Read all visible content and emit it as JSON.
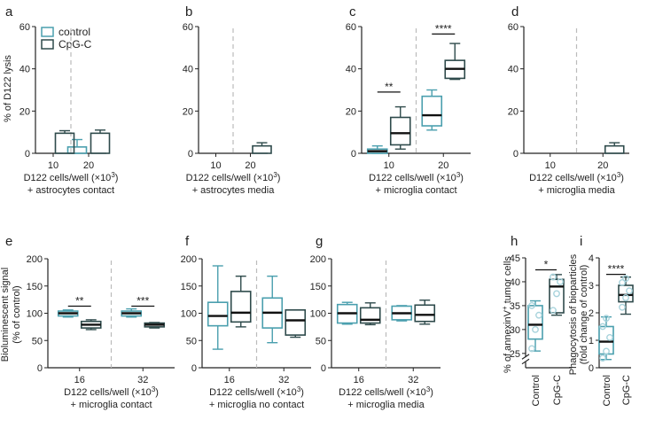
{
  "colors": {
    "control": "#4a9fae",
    "cpg": "#2e4a4b",
    "dots": "#a8d3dc",
    "divider": "#bbbbbb",
    "axis": "#222222"
  },
  "legend": {
    "control": "control",
    "cpg": "CpG-C"
  },
  "chart_data": [
    {
      "id": "a",
      "type": "bar",
      "panel_label": "a",
      "ylabel": "% of D122 lysis",
      "ylim": [
        0,
        60
      ],
      "yticks": [
        "0",
        "20",
        "40",
        "60"
      ],
      "categories": [
        "10",
        "20"
      ],
      "xlabel_line1": "D122 cells/well (×10",
      "xlabel_sup": "3",
      "xlabel_line1_end": ")",
      "xlabel_line2": "+ astrocytes contact",
      "series": [
        {
          "name": "control",
          "values": [
            0,
            3
          ]
        },
        {
          "name": "CpG-C",
          "values": [
            9.5,
            9.5
          ]
        }
      ],
      "errors": [
        [
          0,
          1.2
        ],
        [
          3.5,
          1.5
        ]
      ],
      "stars": []
    },
    {
      "id": "b",
      "type": "bar",
      "panel_label": "b",
      "ylabel": "",
      "ylim": [
        0,
        60
      ],
      "yticks": [
        "0",
        "20",
        "40",
        "60"
      ],
      "categories": [
        "10",
        "20"
      ],
      "xlabel_line1": "D122 cells/well (×10",
      "xlabel_sup": "3",
      "xlabel_line1_end": ")",
      "xlabel_line2": "+ astrocytes media",
      "series": [
        {
          "name": "control",
          "values": [
            0,
            0
          ]
        },
        {
          "name": "CpG-C",
          "values": [
            0,
            3.5
          ]
        }
      ],
      "errors": [
        [
          0,
          0
        ],
        [
          0,
          1.5
        ]
      ],
      "stars": []
    },
    {
      "id": "c",
      "type": "box",
      "panel_label": "c",
      "ylabel": "",
      "ylim": [
        0,
        60
      ],
      "yticks": [
        "0",
        "20",
        "40",
        "60"
      ],
      "categories": [
        "10",
        "20"
      ],
      "xlabel_line1": "D122 cells/well (×10",
      "xlabel_sup": "3",
      "xlabel_line1_end": ")",
      "xlabel_line2": "+ microglia contact",
      "boxes": [
        {
          "group": 0,
          "series": "control",
          "min": 0,
          "q1": 0,
          "median": 1,
          "q3": 2,
          "max": 3.5
        },
        {
          "group": 0,
          "series": "CpG-C",
          "min": 2,
          "q1": 4,
          "median": 9.5,
          "q3": 17,
          "max": 22
        },
        {
          "group": 1,
          "series": "control",
          "min": 11,
          "q1": 13,
          "median": 18,
          "q3": 27,
          "max": 30
        },
        {
          "group": 1,
          "series": "CpG-C",
          "min": 35,
          "q1": 35.5,
          "median": 40,
          "q3": 44,
          "max": 52
        }
      ],
      "stars": [
        {
          "group": 0,
          "text": "**",
          "y": 29
        },
        {
          "group": 1,
          "text": "****",
          "y": 56.5
        }
      ]
    },
    {
      "id": "d",
      "type": "bar",
      "panel_label": "d",
      "ylabel": "",
      "ylim": [
        0,
        60
      ],
      "yticks": [
        "0",
        "20",
        "40",
        "60"
      ],
      "categories": [
        "10",
        "20"
      ],
      "xlabel_line1": "D122 cells/well (×10",
      "xlabel_sup": "3",
      "xlabel_line1_end": ")",
      "xlabel_line2": "+ microglia media",
      "series": [
        {
          "name": "control",
          "values": [
            0,
            0
          ]
        },
        {
          "name": "CpG-C",
          "values": [
            0,
            3.5
          ]
        }
      ],
      "errors": [
        [
          0,
          0
        ],
        [
          0,
          1.5
        ]
      ],
      "stars": []
    },
    {
      "id": "e",
      "type": "box",
      "panel_label": "e",
      "ylabel": "Bioluminescent signal",
      "ylabel2": "(% of control)",
      "ylim": [
        0,
        200
      ],
      "yticks": [
        "0",
        "50",
        "100",
        "150",
        "200"
      ],
      "categories": [
        "16",
        "32"
      ],
      "xlabel_line1": "D122 cells/well (×10",
      "xlabel_sup": "3",
      "xlabel_line1_end": ")",
      "xlabel_line2": "+ microglia contact",
      "boxes": [
        {
          "group": 0,
          "series": "control",
          "min": 93,
          "q1": 95,
          "median": 100,
          "q3": 104,
          "max": 106
        },
        {
          "group": 0,
          "series": "CpG-C",
          "min": 70,
          "q1": 73,
          "median": 79,
          "q3": 85,
          "max": 88
        },
        {
          "group": 1,
          "series": "control",
          "min": 93,
          "q1": 95,
          "median": 100,
          "q3": 104,
          "max": 108
        },
        {
          "group": 1,
          "series": "CpG-C",
          "min": 73,
          "q1": 75,
          "median": 79,
          "q3": 82,
          "max": 83
        }
      ],
      "stars": [
        {
          "group": 0,
          "text": "**",
          "y": 113
        },
        {
          "group": 1,
          "text": "***",
          "y": 113
        }
      ]
    },
    {
      "id": "f",
      "type": "box",
      "panel_label": "f",
      "ylabel": "",
      "ylim": [
        0,
        200
      ],
      "yticks": [
        "0",
        "50",
        "100",
        "150",
        "200"
      ],
      "categories": [
        "16",
        "32"
      ],
      "xlabel_line1": "D122 cells/well (×10",
      "xlabel_sup": "3",
      "xlabel_line1_end": ")",
      "xlabel_line2": "+ microglia no contact",
      "boxes": [
        {
          "group": 0,
          "series": "control",
          "min": 34,
          "q1": 77,
          "median": 95,
          "q3": 120,
          "max": 187
        },
        {
          "group": 0,
          "series": "CpG-C",
          "min": 75,
          "q1": 84,
          "median": 101,
          "q3": 140,
          "max": 168
        },
        {
          "group": 1,
          "series": "control",
          "min": 46,
          "q1": 73,
          "median": 101,
          "q3": 128,
          "max": 168
        },
        {
          "group": 1,
          "series": "CpG-C",
          "min": 56,
          "q1": 60,
          "median": 87,
          "q3": 106,
          "max": 106
        }
      ],
      "stars": []
    },
    {
      "id": "g",
      "type": "box",
      "panel_label": "g",
      "ylabel": "",
      "ylim": [
        0,
        200
      ],
      "yticks": [
        "0",
        "50",
        "100",
        "150",
        "200"
      ],
      "categories": [
        "16",
        "32"
      ],
      "xlabel_line1": "D122 cells/well (×10",
      "xlabel_sup": "3",
      "xlabel_line1_end": ")",
      "xlabel_line2": "+ microglia media",
      "boxes": [
        {
          "group": 0,
          "series": "control",
          "min": 80,
          "q1": 82,
          "median": 100,
          "q3": 116,
          "max": 120
        },
        {
          "group": 0,
          "series": "CpG-C",
          "min": 79,
          "q1": 82,
          "median": 88,
          "q3": 110,
          "max": 119
        },
        {
          "group": 1,
          "series": "control",
          "min": 86,
          "q1": 88,
          "median": 100,
          "q3": 113,
          "max": 114
        },
        {
          "group": 1,
          "series": "CpG-C",
          "min": 80,
          "q1": 85,
          "median": 97,
          "q3": 115,
          "max": 124
        }
      ],
      "stars": []
    },
    {
      "id": "h",
      "type": "box",
      "panel_label": "h",
      "ylabel": "% of annexinV",
      "ylabel_sup": "+",
      "ylabel_end": " tumor cells",
      "ylim": [
        22,
        45
      ],
      "yticks": [
        "25",
        "30",
        "35",
        "40",
        "45"
      ],
      "categories": [
        "Control",
        "CpG-C"
      ],
      "boxes": [
        {
          "group": 0,
          "series": "control",
          "min": 25.5,
          "q1": 28,
          "median": 31,
          "q3": 35,
          "max": 36
        },
        {
          "group": 1,
          "series": "CpG-C",
          "min": 33,
          "q1": 33.5,
          "median": 39,
          "q3": 40.5,
          "max": 41.5
        }
      ],
      "points": [
        [
          {
            "y": 26
          },
          {
            "y": 30
          },
          {
            "y": 33
          },
          {
            "y": 35
          }
        ],
        [
          {
            "y": 34
          },
          {
            "y": 37.5
          },
          {
            "y": 40
          },
          {
            "y": 41
          }
        ]
      ],
      "stars": [
        {
          "group": 0,
          "text": "*",
          "y": 42.5,
          "span": true
        }
      ]
    },
    {
      "id": "i",
      "type": "box",
      "panel_label": "i",
      "ylabel": "Phagocytosis of bioparticles",
      "ylabel2": "(fold change of control)",
      "ylim": [
        0,
        4
      ],
      "yticks": [
        "0",
        "1",
        "2",
        "3",
        "4"
      ],
      "categories": [
        "Control",
        "CpG-C"
      ],
      "boxes": [
        {
          "group": 0,
          "series": "control",
          "min": 0.3,
          "q1": 0.5,
          "median": 0.95,
          "q3": 1.5,
          "max": 1.85
        },
        {
          "group": 1,
          "series": "CpG-C",
          "min": 1.95,
          "q1": 2.4,
          "median": 2.65,
          "q3": 3.0,
          "max": 3.3
        }
      ],
      "points": [
        [
          {
            "y": 0.35
          },
          {
            "y": 0.6
          },
          {
            "y": 1.1
          },
          {
            "y": 1.5
          },
          {
            "y": 1.8
          }
        ],
        [
          {
            "y": 2.2
          },
          {
            "y": 2.55
          },
          {
            "y": 2.8
          },
          {
            "y": 3.1
          },
          {
            "y": 3.25
          }
        ]
      ],
      "stars": [
        {
          "group": 0,
          "text": "****",
          "y": 3.4,
          "span": true
        }
      ]
    }
  ]
}
